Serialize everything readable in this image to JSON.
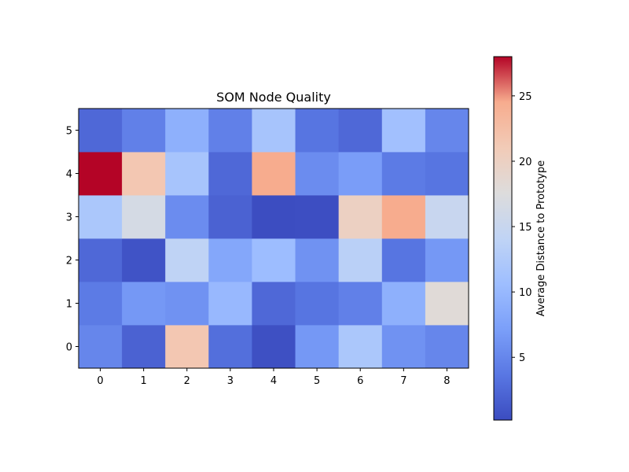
{
  "chart_data": {
    "type": "heatmap",
    "title": "SOM Node Quality",
    "xlabel": "",
    "ylabel": "",
    "x_ticks": [
      "0",
      "1",
      "2",
      "3",
      "4",
      "5",
      "6",
      "7",
      "8"
    ],
    "y_ticks": [
      "0",
      "1",
      "2",
      "3",
      "4",
      "5"
    ],
    "rows_bottom_to_top": [
      [
        5.0,
        2.0,
        21.5,
        3.0,
        0.5,
        6.5,
        12.0,
        6.0,
        5.0
      ],
      [
        4.0,
        6.5,
        6.0,
        10.0,
        2.5,
        3.5,
        4.5,
        9.0,
        18.0
      ],
      [
        2.5,
        0.8,
        14.0,
        8.0,
        10.5,
        6.0,
        13.5,
        3.5,
        6.5
      ],
      [
        12.0,
        16.5,
        5.5,
        2.0,
        0.3,
        0.4,
        20.0,
        24.5,
        15.0
      ],
      [
        28.0,
        21.5,
        11.5,
        2.5,
        24.5,
        5.5,
        7.0,
        4.0,
        3.5
      ],
      [
        2.5,
        4.5,
        9.0,
        4.5,
        11.5,
        3.5,
        2.5,
        11.0,
        5.0
      ]
    ],
    "colormap": "coolwarm",
    "colorbar": {
      "label": "Average Distance to Prototype",
      "min": 0.2,
      "max": 28.0,
      "ticks": [
        5,
        10,
        15,
        20,
        25
      ]
    },
    "grid": false,
    "legend": "none"
  }
}
